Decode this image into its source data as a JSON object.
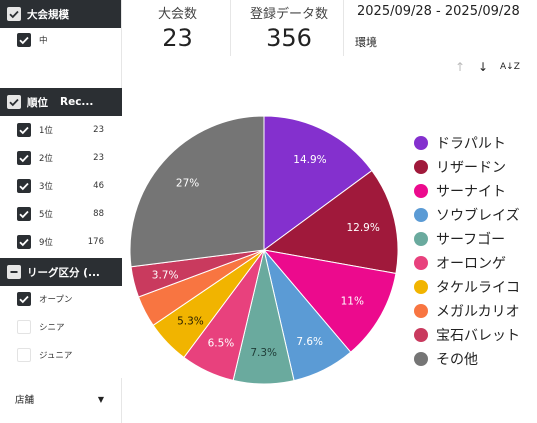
{
  "filters": {
    "size": {
      "header": "大会規模",
      "items": [
        {
          "label": "中",
          "checked": true
        }
      ]
    },
    "rank": {
      "header": "順位",
      "header_col2": "Rec...",
      "items": [
        {
          "label": "1位",
          "count": "23"
        },
        {
          "label": "2位",
          "count": "23"
        },
        {
          "label": "3位",
          "count": "46"
        },
        {
          "label": "5位",
          "count": "88"
        },
        {
          "label": "9位",
          "count": "176"
        }
      ]
    },
    "league": {
      "header": "リーグ区分 (...",
      "items": [
        {
          "label": "オープン",
          "checked": true
        },
        {
          "label": "シニア",
          "checked": false
        },
        {
          "label": "ジュニア",
          "checked": false
        }
      ]
    },
    "store": {
      "label": "店舗"
    }
  },
  "scorecards": {
    "tournaments": {
      "title": "大会数",
      "value": "23"
    },
    "records": {
      "title": "登録データ数",
      "value": "356"
    }
  },
  "date_range": "2025/09/28 - 2025/09/28",
  "environment_label": "環境",
  "toolbar": {
    "up": "↑",
    "down": "↓",
    "sort": "A↓Z"
  },
  "chart_data": {
    "type": "pie",
    "slices": [
      {
        "name": "ドラパルト",
        "value": 14.9,
        "label": "14.9%",
        "color": "#8430ce"
      },
      {
        "name": "リザードン",
        "value": 12.9,
        "label": "12.9%",
        "color": "#a0193b"
      },
      {
        "name": "サーナイト",
        "value": 11,
        "label": "11%",
        "color": "#ec0a8d"
      },
      {
        "name": "ソウブレイズ",
        "value": 7.6,
        "label": "7.6%",
        "color": "#5b9bd5"
      },
      {
        "name": "サーフゴー",
        "value": 7.3,
        "label": "7.3%",
        "color": "#6aaa9e"
      },
      {
        "name": "オーロンゲ",
        "value": 6.5,
        "label": "6.5%",
        "color": "#e8417d"
      },
      {
        "name": "タケルライコ",
        "value": 5.3,
        "label": "5.3%",
        "color": "#f1b400"
      },
      {
        "name": "メガルカリオ",
        "value": 3.8,
        "label": "",
        "color": "#f87541"
      },
      {
        "name": "宝石バレット",
        "value": 3.7,
        "label": "3.7%",
        "color": "#c93a5e"
      },
      {
        "name": "その他",
        "value": 27,
        "label": "27%",
        "color": "#757575"
      }
    ]
  }
}
